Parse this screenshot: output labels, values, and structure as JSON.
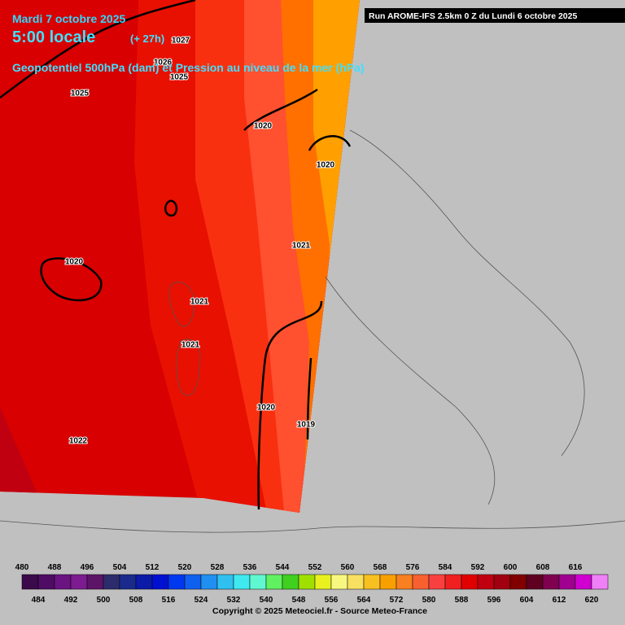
{
  "header": {
    "date": "Mardi 7 octobre 2025",
    "time": "5:00 locale",
    "lead": "(+ 27h)",
    "field": "Geopotentiel 500hPa (dam) et Pression au niveau de la mer (hPa)",
    "run": "Run AROME-IFS 2.5km 0 Z du Lundi 6 octobre 2025"
  },
  "isobar_labels": [
    1027,
    1026,
    1025,
    1025,
    1020,
    1020,
    1021,
    1020,
    1021,
    1021,
    1020,
    1019,
    1022
  ],
  "scale": {
    "levels": [
      480,
      484,
      488,
      492,
      496,
      500,
      504,
      508,
      512,
      516,
      520,
      524,
      528,
      532,
      536,
      540,
      544,
      548,
      552,
      556,
      560,
      564,
      568,
      572,
      576,
      580,
      584,
      588,
      592,
      596,
      600,
      604,
      608,
      612,
      616,
      620
    ],
    "colors": [
      "#3a0a4a",
      "#4e0c64",
      "#6a1482",
      "#7c1c90",
      "#5c1468",
      "#2c2c6c",
      "#1a2a8c",
      "#0c1aa8",
      "#0010d0",
      "#0038f0",
      "#1060f0",
      "#2090f0",
      "#30c0f0",
      "#40e8f0",
      "#60f8d0",
      "#60f060",
      "#40d020",
      "#a0e000",
      "#e8f020",
      "#f8f880",
      "#f8e060",
      "#f8c020",
      "#f8a000",
      "#f88020",
      "#f86030",
      "#f84040",
      "#f02020",
      "#e00000",
      "#c00010",
      "#a00010",
      "#800000",
      "#600020",
      "#800050",
      "#a00090",
      "#d000d0",
      "#f080f8"
    ]
  },
  "copyright": "Copyright © 2025 Meteociel.fr - Source Meteo-France"
}
